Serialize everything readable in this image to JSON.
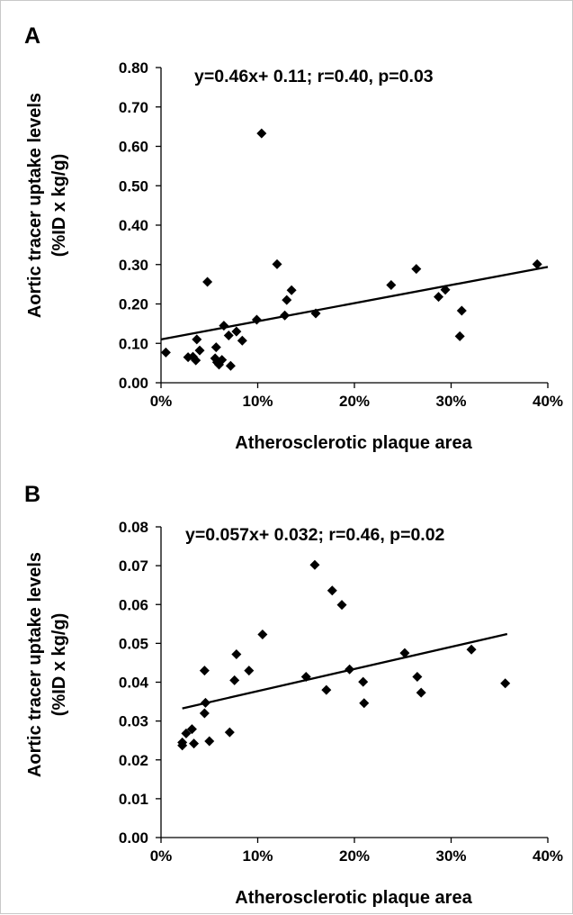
{
  "chart_data": [
    {
      "type": "scatter",
      "panel_label": "A",
      "annotation": "y=0.46x+ 0.11; r=0.40, p=0.03",
      "xlabel": "Atherosclerotic plaque area",
      "ylabel": "Aortic tracer uptake levels",
      "ylabel_units": "(%ID x kg/g)",
      "xlim": [
        0,
        0.4
      ],
      "ylim": [
        0,
        0.8
      ],
      "x_ticks": [
        "0%",
        "10%",
        "20%",
        "30%",
        "40%"
      ],
      "y_ticks": [
        "0.00",
        "0.10",
        "0.20",
        "0.30",
        "0.40",
        "0.50",
        "0.60",
        "0.70",
        "0.80"
      ],
      "marker": "diamond",
      "marker_color": "#000000",
      "trendline": {
        "slope": 0.46,
        "intercept": 0.11,
        "x_range": [
          0,
          0.4
        ]
      },
      "points": [
        {
          "x": 0.005,
          "y": 0.077
        },
        {
          "x": 0.028,
          "y": 0.065
        },
        {
          "x": 0.033,
          "y": 0.066
        },
        {
          "x": 0.036,
          "y": 0.057
        },
        {
          "x": 0.037,
          "y": 0.11
        },
        {
          "x": 0.04,
          "y": 0.082
        },
        {
          "x": 0.048,
          "y": 0.256
        },
        {
          "x": 0.056,
          "y": 0.062
        },
        {
          "x": 0.057,
          "y": 0.09
        },
        {
          "x": 0.058,
          "y": 0.052
        },
        {
          "x": 0.06,
          "y": 0.046
        },
        {
          "x": 0.063,
          "y": 0.058
        },
        {
          "x": 0.065,
          "y": 0.145
        },
        {
          "x": 0.07,
          "y": 0.12
        },
        {
          "x": 0.072,
          "y": 0.043
        },
        {
          "x": 0.078,
          "y": 0.13
        },
        {
          "x": 0.084,
          "y": 0.107
        },
        {
          "x": 0.099,
          "y": 0.16
        },
        {
          "x": 0.104,
          "y": 0.633
        },
        {
          "x": 0.12,
          "y": 0.301
        },
        {
          "x": 0.128,
          "y": 0.171
        },
        {
          "x": 0.13,
          "y": 0.21
        },
        {
          "x": 0.135,
          "y": 0.235
        },
        {
          "x": 0.16,
          "y": 0.176
        },
        {
          "x": 0.238,
          "y": 0.248
        },
        {
          "x": 0.264,
          "y": 0.289
        },
        {
          "x": 0.287,
          "y": 0.218
        },
        {
          "x": 0.294,
          "y": 0.236
        },
        {
          "x": 0.309,
          "y": 0.118
        },
        {
          "x": 0.311,
          "y": 0.183
        },
        {
          "x": 0.389,
          "y": 0.301
        }
      ]
    },
    {
      "type": "scatter",
      "panel_label": "B",
      "annotation": "y=0.057x+ 0.032; r=0.46, p=0.02",
      "xlabel": "Atherosclerotic plaque area",
      "ylabel": "Aortic tracer uptake levels",
      "ylabel_units": "(%ID x kg/g)",
      "xlim": [
        0,
        0.4
      ],
      "ylim": [
        0,
        0.08
      ],
      "x_ticks": [
        "0%",
        "10%",
        "20%",
        "30%",
        "40%"
      ],
      "y_ticks": [
        "0.00",
        "0.01",
        "0.02",
        "0.03",
        "0.04",
        "0.05",
        "0.06",
        "0.07",
        "0.08"
      ],
      "marker": "diamond",
      "marker_color": "#000000",
      "trendline": {
        "slope": 0.057,
        "intercept": 0.032,
        "x_range": [
          0.022,
          0.358
        ]
      },
      "points": [
        {
          "x": 0.022,
          "y": 0.0237
        },
        {
          "x": 0.022,
          "y": 0.0245
        },
        {
          "x": 0.026,
          "y": 0.0268
        },
        {
          "x": 0.032,
          "y": 0.0279
        },
        {
          "x": 0.034,
          "y": 0.0242
        },
        {
          "x": 0.045,
          "y": 0.032
        },
        {
          "x": 0.045,
          "y": 0.043
        },
        {
          "x": 0.046,
          "y": 0.0347
        },
        {
          "x": 0.05,
          "y": 0.0248
        },
        {
          "x": 0.071,
          "y": 0.0271
        },
        {
          "x": 0.076,
          "y": 0.0405
        },
        {
          "x": 0.078,
          "y": 0.0472
        },
        {
          "x": 0.091,
          "y": 0.043
        },
        {
          "x": 0.105,
          "y": 0.0523
        },
        {
          "x": 0.15,
          "y": 0.0414
        },
        {
          "x": 0.159,
          "y": 0.0702
        },
        {
          "x": 0.171,
          "y": 0.038
        },
        {
          "x": 0.177,
          "y": 0.0636
        },
        {
          "x": 0.187,
          "y": 0.0599
        },
        {
          "x": 0.195,
          "y": 0.0433
        },
        {
          "x": 0.209,
          "y": 0.0401
        },
        {
          "x": 0.21,
          "y": 0.0346
        },
        {
          "x": 0.252,
          "y": 0.0475
        },
        {
          "x": 0.265,
          "y": 0.0414
        },
        {
          "x": 0.269,
          "y": 0.0373
        },
        {
          "x": 0.321,
          "y": 0.0484
        },
        {
          "x": 0.356,
          "y": 0.0397
        }
      ]
    }
  ]
}
